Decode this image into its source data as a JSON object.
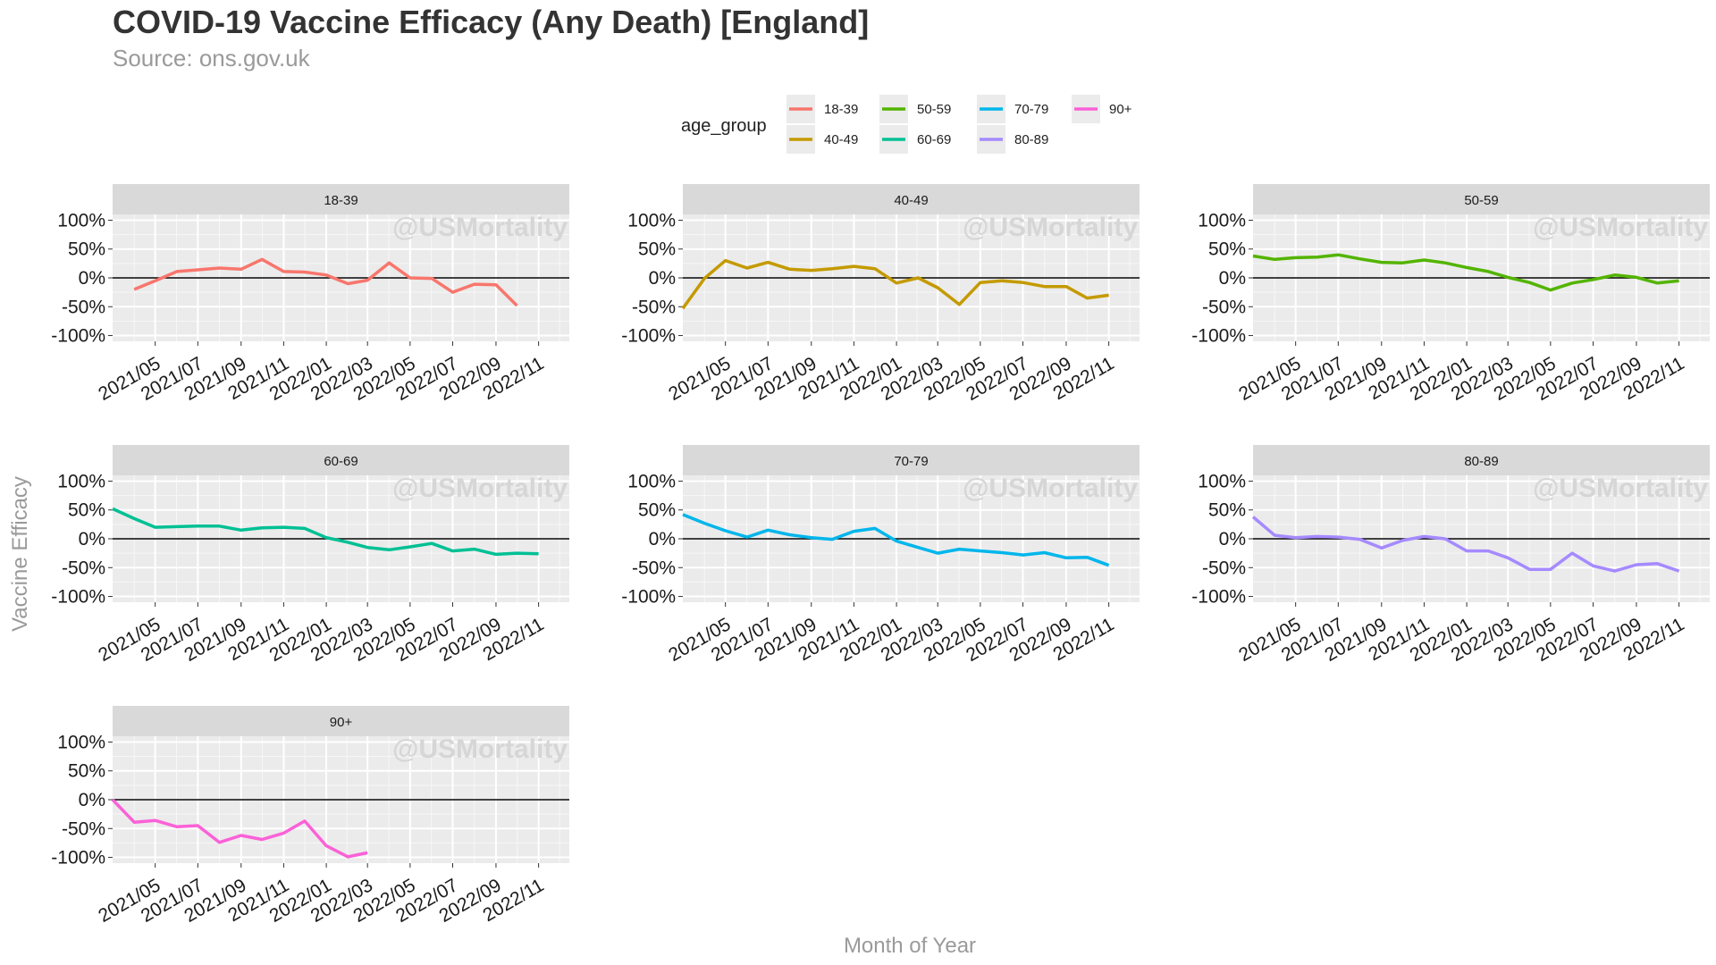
{
  "chart_data": {
    "type": "line",
    "title": "COVID-19 Vaccine Efficacy (Any Death) [England]",
    "subtitle": "Source: ons.gov.uk",
    "xlabel": "Month of Year",
    "ylabel": "Vaccine Efficacy",
    "watermark": "@USMortality",
    "legend": {
      "title": "age_group",
      "position": "top"
    },
    "ylim": [
      -1.1,
      1.1
    ],
    "yticks": [
      1,
      0.5,
      0,
      -0.5,
      -1
    ],
    "ytick_labels": [
      "100%",
      "50%",
      "0%",
      "-50%",
      "-100%"
    ],
    "xlim": [
      "2021-03-01",
      "2022-12-15"
    ],
    "xticks": [
      "2021-05-01",
      "2021-07-01",
      "2021-09-01",
      "2021-11-01",
      "2022-01-01",
      "2022-03-01",
      "2022-05-01",
      "2022-07-01",
      "2022-09-01",
      "2022-11-01"
    ],
    "xtick_labels": [
      "2021/05",
      "2021/07",
      "2021/09",
      "2021/11",
      "2022/01",
      "2022/03",
      "2022/05",
      "2022/07",
      "2022/09",
      "2022/11"
    ],
    "reference_line": 0,
    "grid": true,
    "facets": [
      "18-39",
      "40-49",
      "50-59",
      "60-69",
      "70-79",
      "80-89",
      "90+"
    ],
    "series": [
      {
        "name": "18-39",
        "color": "#F8766D",
        "x": [
          "2021-04-01",
          "2021-05-01",
          "2021-06-01",
          "2021-07-01",
          "2021-08-01",
          "2021-09-01",
          "2021-10-01",
          "2021-11-01",
          "2021-12-01",
          "2022-01-01",
          "2022-02-01",
          "2022-03-01",
          "2022-04-01",
          "2022-05-01",
          "2022-06-01",
          "2022-07-01",
          "2022-08-01",
          "2022-09-01",
          "2022-10-01",
          "2022-11-01"
        ],
        "y": [
          -0.2,
          -0.05,
          0.11,
          0.14,
          0.17,
          0.15,
          0.32,
          0.11,
          0.1,
          0.05,
          -0.1,
          -0.04,
          0.26,
          0.0,
          -0.01,
          -0.25,
          -0.11,
          -0.12,
          -0.48,
          null
        ]
      },
      {
        "name": "40-49",
        "color": "#C49A00",
        "x": [
          "2021-03-01",
          "2021-04-01",
          "2021-05-01",
          "2021-06-01",
          "2021-07-01",
          "2021-08-01",
          "2021-09-01",
          "2021-10-01",
          "2021-11-01",
          "2021-12-01",
          "2022-01-01",
          "2022-02-01",
          "2022-03-01",
          "2022-04-01",
          "2022-05-01",
          "2022-06-01",
          "2022-07-01",
          "2022-08-01",
          "2022-09-01",
          "2022-10-01",
          "2022-11-01"
        ],
        "y": [
          -0.53,
          -0.01,
          0.3,
          0.17,
          0.27,
          0.15,
          0.13,
          0.16,
          0.2,
          0.16,
          -0.09,
          0.0,
          -0.17,
          -0.46,
          -0.08,
          -0.05,
          -0.08,
          -0.15,
          -0.15,
          -0.35,
          -0.3
        ]
      },
      {
        "name": "50-59",
        "color": "#53B400",
        "x": [
          "2021-03-01",
          "2021-04-01",
          "2021-05-01",
          "2021-06-01",
          "2021-07-01",
          "2021-08-01",
          "2021-09-01",
          "2021-10-01",
          "2021-11-01",
          "2021-12-01",
          "2022-01-01",
          "2022-02-01",
          "2022-03-01",
          "2022-04-01",
          "2022-05-01",
          "2022-06-01",
          "2022-07-01",
          "2022-08-01",
          "2022-09-01",
          "2022-10-01",
          "2022-11-01"
        ],
        "y": [
          0.38,
          0.32,
          0.35,
          0.36,
          0.4,
          0.33,
          0.27,
          0.26,
          0.31,
          0.26,
          0.18,
          0.11,
          0.01,
          -0.08,
          -0.21,
          -0.09,
          -0.03,
          0.05,
          0.01,
          -0.09,
          -0.05
        ]
      },
      {
        "name": "60-69",
        "color": "#00C094",
        "x": [
          "2021-03-01",
          "2021-04-01",
          "2021-05-01",
          "2021-06-01",
          "2021-07-01",
          "2021-08-01",
          "2021-09-01",
          "2021-10-01",
          "2021-11-01",
          "2021-12-01",
          "2022-01-01",
          "2022-02-01",
          "2022-03-01",
          "2022-04-01",
          "2022-05-01",
          "2022-06-01",
          "2022-07-01",
          "2022-08-01",
          "2022-09-01",
          "2022-10-01",
          "2022-11-01"
        ],
        "y": [
          0.52,
          0.35,
          0.2,
          0.21,
          0.22,
          0.22,
          0.15,
          0.19,
          0.2,
          0.18,
          0.02,
          -0.06,
          -0.15,
          -0.19,
          -0.14,
          -0.08,
          -0.21,
          -0.18,
          -0.27,
          -0.25,
          -0.26
        ]
      },
      {
        "name": "70-79",
        "color": "#00B6EB",
        "x": [
          "2021-03-01",
          "2021-04-01",
          "2021-05-01",
          "2021-06-01",
          "2021-07-01",
          "2021-08-01",
          "2021-09-01",
          "2021-10-01",
          "2021-11-01",
          "2021-12-01",
          "2022-01-01",
          "2022-02-01",
          "2022-03-01",
          "2022-04-01",
          "2022-05-01",
          "2022-06-01",
          "2022-07-01",
          "2022-08-01",
          "2022-09-01",
          "2022-10-01",
          "2022-11-01"
        ],
        "y": [
          0.42,
          0.27,
          0.14,
          0.03,
          0.15,
          0.07,
          0.02,
          -0.01,
          0.13,
          0.18,
          -0.04,
          -0.15,
          -0.25,
          -0.18,
          -0.21,
          -0.24,
          -0.28,
          -0.24,
          -0.33,
          -0.32,
          -0.46
        ]
      },
      {
        "name": "80-89",
        "color": "#A58AFF",
        "x": [
          "2021-03-01",
          "2021-04-01",
          "2021-05-01",
          "2021-06-01",
          "2021-07-01",
          "2021-08-01",
          "2021-09-01",
          "2021-10-01",
          "2021-11-01",
          "2021-12-01",
          "2022-01-01",
          "2022-02-01",
          "2022-03-01",
          "2022-04-01",
          "2022-05-01",
          "2022-06-01",
          "2022-07-01",
          "2022-08-01",
          "2022-09-01",
          "2022-10-01",
          "2022-11-01"
        ],
        "y": [
          0.38,
          0.06,
          0.02,
          0.04,
          0.03,
          -0.01,
          -0.16,
          -0.03,
          0.04,
          0.0,
          -0.21,
          -0.21,
          -0.33,
          -0.53,
          -0.53,
          -0.25,
          -0.47,
          -0.56,
          -0.45,
          -0.43,
          -0.56
        ]
      },
      {
        "name": "90+",
        "color": "#FB61D7",
        "x": [
          "2021-03-01",
          "2021-04-01",
          "2021-05-01",
          "2021-06-01",
          "2021-07-01",
          "2021-08-01",
          "2021-09-01",
          "2021-10-01",
          "2021-11-01",
          "2021-12-01",
          "2022-01-01",
          "2022-02-01",
          "2022-03-01"
        ],
        "y": [
          0.0,
          -0.39,
          -0.36,
          -0.47,
          -0.45,
          -0.74,
          -0.62,
          -0.69,
          -0.58,
          -0.37,
          -0.8,
          -0.99,
          -0.92
        ]
      }
    ]
  }
}
